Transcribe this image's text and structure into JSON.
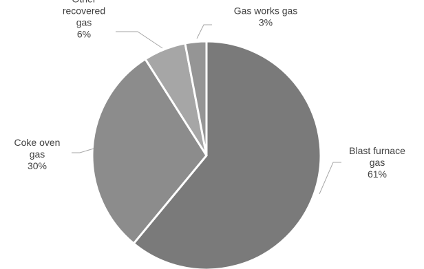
{
  "chart_data": {
    "type": "pie",
    "title": "",
    "slices": [
      {
        "label": [
          "Blast furnace",
          "gas"
        ],
        "value": 61,
        "pct_label": "61%",
        "color": "#7a7a7a"
      },
      {
        "label": [
          "Coke oven",
          "gas"
        ],
        "value": 30,
        "pct_label": "30%",
        "color": "#8c8c8c"
      },
      {
        "label": [
          "Other",
          "recovered",
          "gas"
        ],
        "value": 6,
        "pct_label": "6%",
        "color": "#a6a6a6"
      },
      {
        "label": [
          "Gas works gas"
        ],
        "value": 3,
        "pct_label": "3%",
        "color": "#959595"
      }
    ],
    "direction": "clockwise from top",
    "legend": "none (data labels with leader lines)"
  }
}
